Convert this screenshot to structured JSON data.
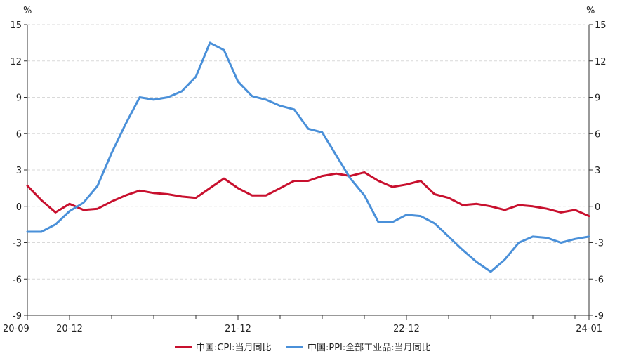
{
  "chart_data": {
    "type": "line",
    "unit_left": "%",
    "unit_right": "%",
    "ylim": [
      -9,
      15
    ],
    "y_ticks": [
      "15",
      "12",
      "9",
      "6",
      "3",
      "0",
      "-3",
      "-6",
      "-9"
    ],
    "y_tick_values": [
      15,
      12,
      9,
      6,
      3,
      0,
      -3,
      -6,
      -9
    ],
    "x_range": [
      "2020-09",
      "2024-01"
    ],
    "x_tick_labels": [
      {
        "label": "20-09",
        "month": "2020-09"
      },
      {
        "label": "20-12",
        "month": "2020-12"
      },
      {
        "label": "21-12",
        "month": "2021-12"
      },
      {
        "label": "22-12",
        "month": "2022-12"
      },
      {
        "label": "24-01",
        "month": "2024-01"
      }
    ],
    "grid": "horizontal dashed",
    "legend_position": "bottom-center",
    "x": [
      "2020-09",
      "2020-10",
      "2020-11",
      "2020-12",
      "2021-01",
      "2021-02",
      "2021-03",
      "2021-04",
      "2021-05",
      "2021-06",
      "2021-07",
      "2021-08",
      "2021-09",
      "2021-10",
      "2021-11",
      "2021-12",
      "2022-01",
      "2022-02",
      "2022-03",
      "2022-04",
      "2022-05",
      "2022-06",
      "2022-07",
      "2022-08",
      "2022-09",
      "2022-10",
      "2022-11",
      "2022-12",
      "2023-01",
      "2023-02",
      "2023-03",
      "2023-04",
      "2023-05",
      "2023-06",
      "2023-07",
      "2023-08",
      "2023-09",
      "2023-10",
      "2023-11",
      "2023-12",
      "2024-01"
    ],
    "series": [
      {
        "name": "中国:CPI:当月同比",
        "color": "#c8102e",
        "values": [
          1.7,
          0.5,
          -0.5,
          0.2,
          -0.3,
          -0.2,
          0.4,
          0.9,
          1.3,
          1.1,
          1.0,
          0.8,
          0.7,
          1.5,
          2.3,
          1.5,
          0.9,
          0.9,
          1.5,
          2.1,
          2.1,
          2.5,
          2.7,
          2.5,
          2.8,
          2.1,
          1.6,
          1.8,
          2.1,
          1.0,
          0.7,
          0.1,
          0.2,
          0.0,
          -0.3,
          0.1,
          0.0,
          -0.2,
          -0.5,
          -0.3,
          -0.8
        ]
      },
      {
        "name": "中国:PPI:全部工业品:当月同比",
        "color": "#4a90d9",
        "values": [
          -2.1,
          -2.1,
          -1.5,
          -0.4,
          0.3,
          1.7,
          4.4,
          6.8,
          9.0,
          8.8,
          9.0,
          9.5,
          10.7,
          13.5,
          12.9,
          10.3,
          9.1,
          8.8,
          8.3,
          8.0,
          6.4,
          6.1,
          4.2,
          2.3,
          0.9,
          -1.3,
          -1.3,
          -0.7,
          -0.8,
          -1.4,
          -2.5,
          -3.6,
          -4.6,
          -5.4,
          -4.4,
          -3.0,
          -2.5,
          -2.6,
          -3.0,
          -2.7,
          -2.5
        ]
      }
    ]
  }
}
